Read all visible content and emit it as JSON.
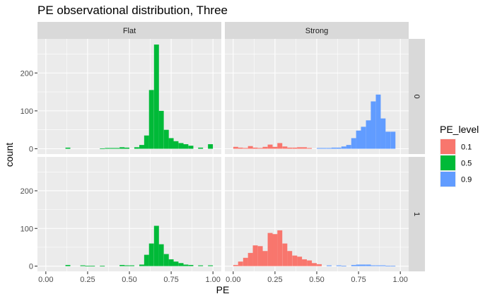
{
  "chart_data": {
    "type": "histogram",
    "title": "PE observational distribution, Three",
    "xlabel": "PE",
    "ylabel": "count",
    "x_ticks": [
      0.0,
      0.25,
      0.5,
      0.75,
      1.0
    ],
    "x_tick_labels": [
      "0.00",
      "0.25",
      "0.50",
      "0.75",
      "1.00"
    ],
    "xlim": [
      -0.05,
      1.05
    ],
    "y_ticks": [
      0,
      100,
      200
    ],
    "ylim": [
      -14,
      290
    ],
    "bin_width": 0.0294,
    "facet_cols": [
      "Flat",
      "Strong"
    ],
    "facet_rows": [
      "0",
      "1"
    ],
    "legend": {
      "title": "PE_level",
      "position": "right",
      "items": [
        {
          "label": "0.1",
          "color": "#F8766D"
        },
        {
          "label": "0.5",
          "color": "#00BA38"
        },
        {
          "label": "0.9",
          "color": "#619CFF"
        }
      ]
    },
    "panels": [
      {
        "row": "0",
        "col": "Flat",
        "series": [
          {
            "level": "0.5",
            "color": "#00BA38",
            "bins": [
              [
                0.132,
                3
              ],
              [
                0.338,
                1
              ],
              [
                0.368,
                2
              ],
              [
                0.397,
                2
              ],
              [
                0.426,
                2
              ],
              [
                0.456,
                4
              ],
              [
                0.485,
                3
              ],
              [
                0.544,
                4
              ],
              [
                0.574,
                10
              ],
              [
                0.603,
                35
              ],
              [
                0.632,
                155
              ],
              [
                0.662,
                275
              ],
              [
                0.691,
                100
              ],
              [
                0.721,
                50
              ],
              [
                0.75,
                28
              ],
              [
                0.779,
                20
              ],
              [
                0.809,
                15
              ],
              [
                0.838,
                12
              ],
              [
                0.868,
                8
              ],
              [
                0.926,
                3
              ],
              [
                0.985,
                12
              ]
            ]
          }
        ]
      },
      {
        "row": "0",
        "col": "Strong",
        "series": [
          {
            "level": "0.1",
            "color": "#F8766D",
            "bins": [
              [
                0.015,
                5
              ],
              [
                0.044,
                3
              ],
              [
                0.074,
                2
              ],
              [
                0.103,
                7
              ],
              [
                0.132,
                3
              ],
              [
                0.162,
                2
              ],
              [
                0.191,
                5
              ],
              [
                0.221,
                11
              ],
              [
                0.25,
                5
              ],
              [
                0.279,
                15
              ],
              [
                0.309,
                6
              ],
              [
                0.338,
                3
              ],
              [
                0.368,
                3
              ],
              [
                0.397,
                4
              ],
              [
                0.426,
                4
              ],
              [
                0.456,
                2
              ]
            ]
          },
          {
            "level": "0.9",
            "color": "#619CFF",
            "bins": [
              [
                0.515,
                2
              ],
              [
                0.544,
                2
              ],
              [
                0.574,
                2
              ],
              [
                0.603,
                3
              ],
              [
                0.632,
                3
              ],
              [
                0.662,
                6
              ],
              [
                0.691,
                10
              ],
              [
                0.721,
                28
              ],
              [
                0.75,
                48
              ],
              [
                0.779,
                58
              ],
              [
                0.809,
                75
              ],
              [
                0.838,
                125
              ],
              [
                0.868,
                143
              ],
              [
                0.897,
                80
              ],
              [
                0.926,
                45
              ],
              [
                0.956,
                45
              ]
            ]
          }
        ]
      },
      {
        "row": "1",
        "col": "Flat",
        "series": [
          {
            "level": "0.5",
            "color": "#00BA38",
            "bins": [
              [
                0.132,
                3
              ],
              [
                0.221,
                2
              ],
              [
                0.25,
                1
              ],
              [
                0.279,
                1
              ],
              [
                0.338,
                1
              ],
              [
                0.456,
                3
              ],
              [
                0.485,
                2
              ],
              [
                0.515,
                2
              ],
              [
                0.574,
                4
              ],
              [
                0.603,
                30
              ],
              [
                0.632,
                60
              ],
              [
                0.662,
                107
              ],
              [
                0.691,
                58
              ],
              [
                0.721,
                32
              ],
              [
                0.75,
                18
              ],
              [
                0.779,
                12
              ],
              [
                0.809,
                8
              ],
              [
                0.838,
                4
              ],
              [
                0.868,
                3
              ],
              [
                0.926,
                2
              ],
              [
                0.985,
                2
              ]
            ]
          }
        ]
      },
      {
        "row": "1",
        "col": "Strong",
        "series": [
          {
            "level": "0.1",
            "color": "#F8766D",
            "bins": [
              [
                0.015,
                3
              ],
              [
                0.044,
                12
              ],
              [
                0.074,
                22
              ],
              [
                0.103,
                35
              ],
              [
                0.132,
                55
              ],
              [
                0.162,
                53
              ],
              [
                0.191,
                40
              ],
              [
                0.221,
                88
              ],
              [
                0.25,
                85
              ],
              [
                0.279,
                95
              ],
              [
                0.309,
                60
              ],
              [
                0.338,
                40
              ],
              [
                0.368,
                28
              ],
              [
                0.397,
                25
              ],
              [
                0.426,
                18
              ],
              [
                0.456,
                15
              ],
              [
                0.485,
                8
              ],
              [
                0.515,
                5
              ]
            ]
          },
          {
            "level": "0.9",
            "color": "#619CFF",
            "bins": [
              [
                0.574,
                2
              ],
              [
                0.632,
                2
              ],
              [
                0.662,
                1
              ],
              [
                0.721,
                3
              ],
              [
                0.75,
                4
              ],
              [
                0.779,
                4
              ],
              [
                0.809,
                4
              ],
              [
                0.838,
                2
              ],
              [
                0.868,
                2
              ],
              [
                0.897,
                2
              ],
              [
                0.926,
                1
              ],
              [
                0.956,
                1
              ]
            ]
          }
        ]
      }
    ]
  }
}
